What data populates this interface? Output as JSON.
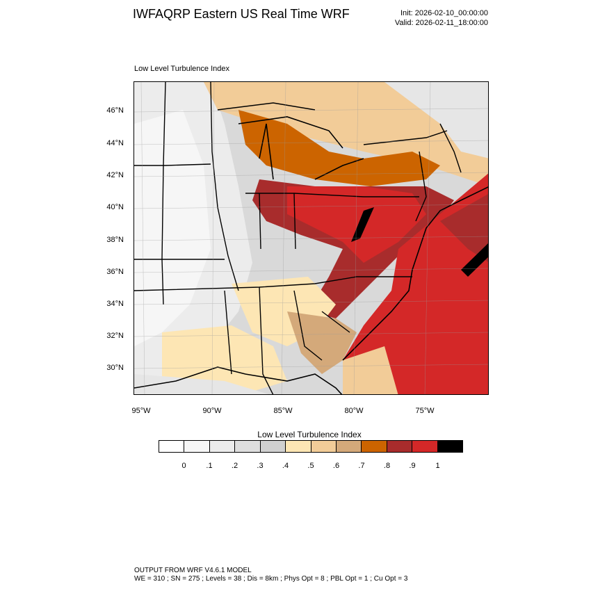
{
  "header": {
    "title": "IWFAQRP Eastern US Real Time WRF",
    "init": "Init: 2026-02-10_00:00:00",
    "valid": "Valid: 2026-02-11_18:00:00"
  },
  "map": {
    "subtitle": "Low Level Turbulence Index",
    "lat_labels": [
      "46°N",
      "44°N",
      "42°N",
      "40°N",
      "38°N",
      "36°N",
      "34°N",
      "32°N",
      "30°N"
    ],
    "lon_labels": [
      "95°W",
      "90°W",
      "85°W",
      "80°W",
      "75°W"
    ]
  },
  "colorbar": {
    "title": "Low Level Turbulence Index",
    "colors": [
      "#ffffff",
      "#f7f7f7",
      "#ececec",
      "#dedede",
      "#d0d0d0",
      "#fde6b4",
      "#f2cc98",
      "#d4a97a",
      "#cc6400",
      "#a82c2c",
      "#d42828",
      "#000000"
    ],
    "labels": [
      "0",
      ".1",
      ".2",
      ".3",
      ".4",
      ".5",
      ".6",
      ".7",
      ".8",
      ".9",
      "1"
    ]
  },
  "footer": {
    "line1": "OUTPUT FROM WRF V4.6.1 MODEL",
    "line2": "WE = 310 ; SN = 275 ; Levels = 38 ; Dis = 8km ; Phys Opt = 8 ; PBL Opt = 1 ; Cu Opt = 3"
  }
}
